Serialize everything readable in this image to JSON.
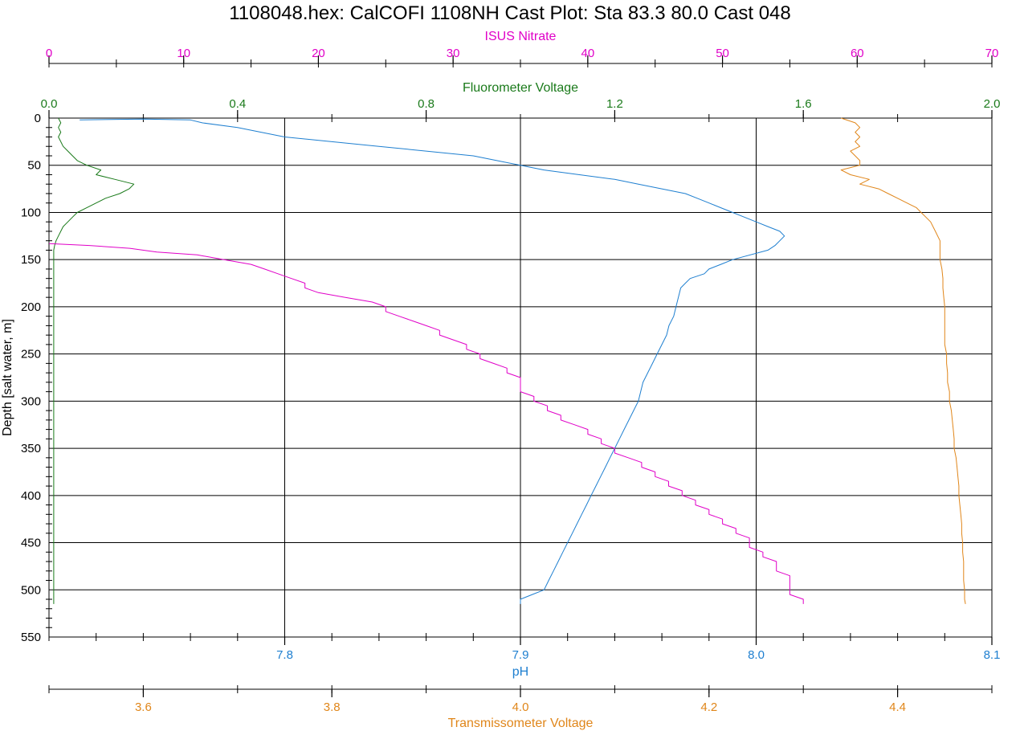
{
  "chart_data": {
    "type": "line",
    "title": "1108048.hex: CalCOFI 1108NH Cast Plot: Sta 83.3  80.0  Cast 048",
    "y_axis": {
      "label": "Depth [salt water, m]",
      "range": [
        0,
        550
      ],
      "ticks": [
        "0",
        "50",
        "100",
        "150",
        "200",
        "250",
        "300",
        "350",
        "400",
        "450",
        "500",
        "550"
      ],
      "inverted": true
    },
    "x_axes": [
      {
        "id": "nitrate",
        "label": "ISUS Nitrate",
        "position": "top",
        "color": "#e000c8",
        "range": [
          0,
          70
        ],
        "ticks": [
          "0",
          "10",
          "20",
          "30",
          "40",
          "50",
          "60",
          "70"
        ]
      },
      {
        "id": "fluor",
        "label": "Fluorometer Voltage",
        "position": "top",
        "color": "#1a7a1a",
        "range": [
          0,
          2.0
        ],
        "ticks": [
          "0.0",
          "0.4",
          "0.8",
          "1.2",
          "1.6",
          "2.0"
        ]
      },
      {
        "id": "ph",
        "label": "pH",
        "position": "bottom",
        "color": "#1e7fd0",
        "range": [
          7.7,
          8.1
        ],
        "ticks": [
          "7.8",
          "7.9",
          "8.0",
          "8.1"
        ]
      },
      {
        "id": "trans",
        "label": "Transmissometer Voltage",
        "position": "bottom",
        "color": "#e0861a",
        "range": [
          3.5,
          4.5
        ],
        "ticks": [
          "3.6",
          "3.8",
          "4.0",
          "4.2",
          "4.4"
        ]
      }
    ],
    "grid": true,
    "series": [
      {
        "axis": "ph",
        "color": "#1e7fd0",
        "points": [
          [
            7.713,
            2
          ],
          [
            7.74,
            1
          ],
          [
            7.76,
            2
          ],
          [
            7.765,
            5
          ],
          [
            7.78,
            10
          ],
          [
            7.79,
            15
          ],
          [
            7.8,
            20
          ],
          [
            7.82,
            25
          ],
          [
            7.84,
            30
          ],
          [
            7.86,
            35
          ],
          [
            7.88,
            40
          ],
          [
            7.89,
            45
          ],
          [
            7.9,
            50
          ],
          [
            7.91,
            55
          ],
          [
            7.925,
            60
          ],
          [
            7.94,
            65
          ],
          [
            7.95,
            70
          ],
          [
            7.96,
            75
          ],
          [
            7.97,
            80
          ],
          [
            7.975,
            85
          ],
          [
            7.98,
            90
          ],
          [
            7.985,
            95
          ],
          [
            7.99,
            100
          ],
          [
            7.995,
            105
          ],
          [
            8.0,
            110
          ],
          [
            8.005,
            115
          ],
          [
            8.01,
            120
          ],
          [
            8.012,
            125
          ],
          [
            8.01,
            130
          ],
          [
            8.008,
            135
          ],
          [
            8.005,
            140
          ],
          [
            7.99,
            150
          ],
          [
            7.985,
            155
          ],
          [
            7.98,
            160
          ],
          [
            7.978,
            165
          ],
          [
            7.972,
            170
          ],
          [
            7.97,
            175
          ],
          [
            7.968,
            180
          ],
          [
            7.967,
            190
          ],
          [
            7.966,
            200
          ],
          [
            7.965,
            210
          ],
          [
            7.963,
            220
          ],
          [
            7.962,
            230
          ],
          [
            7.96,
            240
          ],
          [
            7.958,
            250
          ],
          [
            7.956,
            260
          ],
          [
            7.954,
            270
          ],
          [
            7.952,
            280
          ],
          [
            7.951,
            290
          ],
          [
            7.95,
            300
          ],
          [
            7.948,
            310
          ],
          [
            7.946,
            320
          ],
          [
            7.944,
            330
          ],
          [
            7.942,
            340
          ],
          [
            7.94,
            350
          ],
          [
            7.938,
            360
          ],
          [
            7.936,
            370
          ],
          [
            7.934,
            380
          ],
          [
            7.932,
            390
          ],
          [
            7.93,
            400
          ],
          [
            7.928,
            410
          ],
          [
            7.926,
            420
          ],
          [
            7.924,
            430
          ],
          [
            7.922,
            440
          ],
          [
            7.92,
            450
          ],
          [
            7.918,
            460
          ],
          [
            7.916,
            470
          ],
          [
            7.914,
            480
          ],
          [
            7.912,
            490
          ],
          [
            7.91,
            500
          ],
          [
            7.905,
            505
          ],
          [
            7.9,
            510
          ],
          [
            7.9,
            515
          ]
        ]
      },
      {
        "axis": "trans",
        "color": "#e0861a",
        "points": [
          [
            4.34,
            0
          ],
          [
            4.355,
            5
          ],
          [
            4.36,
            10
          ],
          [
            4.355,
            15
          ],
          [
            4.36,
            20
          ],
          [
            4.355,
            25
          ],
          [
            4.36,
            30
          ],
          [
            4.35,
            35
          ],
          [
            4.355,
            40
          ],
          [
            4.36,
            45
          ],
          [
            4.36,
            50
          ],
          [
            4.34,
            55
          ],
          [
            4.35,
            60
          ],
          [
            4.37,
            65
          ],
          [
            4.36,
            70
          ],
          [
            4.38,
            75
          ],
          [
            4.39,
            80
          ],
          [
            4.4,
            85
          ],
          [
            4.41,
            90
          ],
          [
            4.42,
            95
          ],
          [
            4.425,
            100
          ],
          [
            4.43,
            105
          ],
          [
            4.435,
            110
          ],
          [
            4.44,
            120
          ],
          [
            4.445,
            130
          ],
          [
            4.445,
            140
          ],
          [
            4.445,
            150
          ],
          [
            4.447,
            160
          ],
          [
            4.448,
            170
          ],
          [
            4.448,
            180
          ],
          [
            4.449,
            190
          ],
          [
            4.45,
            200
          ],
          [
            4.45,
            210
          ],
          [
            4.45,
            220
          ],
          [
            4.45,
            230
          ],
          [
            4.45,
            240
          ],
          [
            4.452,
            250
          ],
          [
            4.452,
            260
          ],
          [
            4.453,
            270
          ],
          [
            4.453,
            280
          ],
          [
            4.455,
            290
          ],
          [
            4.455,
            300
          ],
          [
            4.457,
            310
          ],
          [
            4.458,
            320
          ],
          [
            4.459,
            330
          ],
          [
            4.46,
            340
          ],
          [
            4.46,
            350
          ],
          [
            4.462,
            360
          ],
          [
            4.463,
            370
          ],
          [
            4.464,
            380
          ],
          [
            4.465,
            390
          ],
          [
            4.465,
            400
          ],
          [
            4.466,
            410
          ],
          [
            4.467,
            420
          ],
          [
            4.468,
            430
          ],
          [
            4.468,
            440
          ],
          [
            4.469,
            450
          ],
          [
            4.469,
            460
          ],
          [
            4.47,
            470
          ],
          [
            4.47,
            480
          ],
          [
            4.47,
            490
          ],
          [
            4.471,
            500
          ],
          [
            4.471,
            510
          ],
          [
            4.472,
            515
          ]
        ]
      },
      {
        "axis": "fluor",
        "color": "#1a7a1a",
        "points": [
          [
            0.02,
            0
          ],
          [
            0.025,
            5
          ],
          [
            0.02,
            10
          ],
          [
            0.025,
            15
          ],
          [
            0.02,
            20
          ],
          [
            0.025,
            25
          ],
          [
            0.03,
            30
          ],
          [
            0.04,
            35
          ],
          [
            0.05,
            40
          ],
          [
            0.06,
            45
          ],
          [
            0.08,
            50
          ],
          [
            0.11,
            55
          ],
          [
            0.1,
            60
          ],
          [
            0.14,
            65
          ],
          [
            0.18,
            70
          ],
          [
            0.17,
            75
          ],
          [
            0.15,
            80
          ],
          [
            0.12,
            85
          ],
          [
            0.1,
            90
          ],
          [
            0.08,
            95
          ],
          [
            0.06,
            100
          ],
          [
            0.05,
            105
          ],
          [
            0.04,
            110
          ],
          [
            0.03,
            115
          ],
          [
            0.025,
            120
          ],
          [
            0.02,
            125
          ],
          [
            0.015,
            130
          ],
          [
            0.012,
            135
          ],
          [
            0.01,
            140
          ],
          [
            0.01,
            150
          ],
          [
            0.01,
            200
          ],
          [
            0.01,
            250
          ],
          [
            0.01,
            300
          ],
          [
            0.01,
            350
          ],
          [
            0.01,
            400
          ],
          [
            0.01,
            450
          ],
          [
            0.01,
            500
          ],
          [
            0.01,
            515
          ]
        ]
      },
      {
        "axis": "nitrate",
        "color": "#e000c8",
        "points": [
          [
            0,
            133
          ],
          [
            3,
            135
          ],
          [
            6,
            138
          ],
          [
            8,
            142
          ],
          [
            11,
            145
          ],
          [
            13,
            150
          ],
          [
            15,
            155
          ],
          [
            16,
            160
          ],
          [
            17,
            165
          ],
          [
            18,
            170
          ],
          [
            19,
            175
          ],
          [
            19,
            180
          ],
          [
            20,
            185
          ],
          [
            22,
            190
          ],
          [
            24,
            195
          ],
          [
            25,
            200
          ],
          [
            25,
            205
          ],
          [
            26,
            210
          ],
          [
            27,
            215
          ],
          [
            28,
            220
          ],
          [
            29,
            225
          ],
          [
            29,
            230
          ],
          [
            30,
            235
          ],
          [
            31,
            240
          ],
          [
            31,
            245
          ],
          [
            32,
            250
          ],
          [
            32,
            255
          ],
          [
            33,
            260
          ],
          [
            34,
            265
          ],
          [
            34,
            270
          ],
          [
            35,
            275
          ],
          [
            35,
            280
          ],
          [
            35,
            285
          ],
          [
            35,
            290
          ],
          [
            36,
            295
          ],
          [
            36,
            300
          ],
          [
            37,
            305
          ],
          [
            37,
            310
          ],
          [
            38,
            315
          ],
          [
            38,
            320
          ],
          [
            39,
            325
          ],
          [
            40,
            330
          ],
          [
            40,
            335
          ],
          [
            41,
            340
          ],
          [
            41,
            345
          ],
          [
            42,
            350
          ],
          [
            42,
            355
          ],
          [
            43,
            360
          ],
          [
            44,
            365
          ],
          [
            44,
            370
          ],
          [
            45,
            375
          ],
          [
            45,
            380
          ],
          [
            46,
            385
          ],
          [
            46,
            390
          ],
          [
            47,
            395
          ],
          [
            47,
            400
          ],
          [
            48,
            405
          ],
          [
            48,
            410
          ],
          [
            49,
            415
          ],
          [
            49,
            420
          ],
          [
            50,
            425
          ],
          [
            50,
            430
          ],
          [
            51,
            435
          ],
          [
            51,
            440
          ],
          [
            52,
            445
          ],
          [
            52,
            450
          ],
          [
            52,
            455
          ],
          [
            53,
            460
          ],
          [
            53,
            465
          ],
          [
            54,
            470
          ],
          [
            54,
            475
          ],
          [
            54,
            480
          ],
          [
            55,
            485
          ],
          [
            55,
            490
          ],
          [
            55,
            495
          ],
          [
            55,
            500
          ],
          [
            55,
            505
          ],
          [
            56,
            510
          ],
          [
            56,
            515
          ]
        ]
      }
    ]
  }
}
